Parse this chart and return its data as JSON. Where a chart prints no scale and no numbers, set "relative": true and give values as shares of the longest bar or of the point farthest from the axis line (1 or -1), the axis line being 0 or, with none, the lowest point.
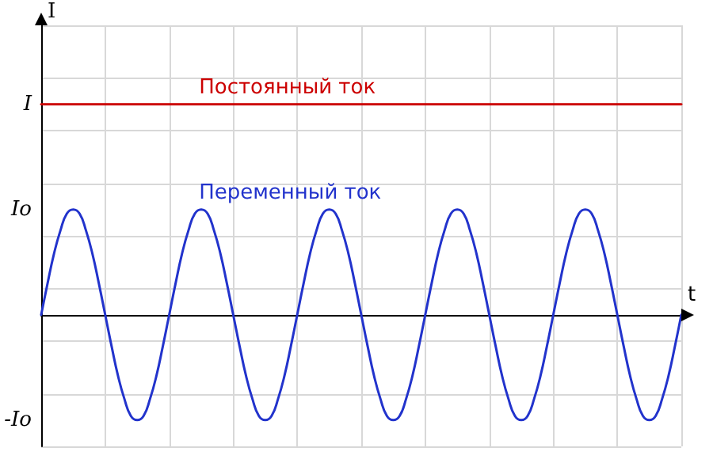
{
  "chart_data": {
    "type": "line",
    "xlabel": "t",
    "ylabel": "I",
    "categories": [
      null,
      null,
      null,
      null,
      null,
      null,
      null,
      null,
      null,
      null,
      null,
      null,
      null,
      null,
      null,
      null,
      null,
      null,
      null,
      null,
      null,
      null,
      null,
      null,
      null,
      null,
      null,
      null,
      null,
      null,
      null,
      null,
      null,
      null,
      null,
      null,
      null,
      null,
      null,
      null,
      null,
      null,
      null,
      null,
      null,
      null,
      null,
      null,
      null,
      null,
      null,
      null,
      null,
      null,
      null,
      null,
      null,
      null,
      null,
      null,
      null,
      null,
      null,
      null,
      null,
      null,
      null,
      null,
      null,
      null,
      null,
      null,
      null,
      null,
      null,
      null,
      null,
      null,
      null,
      null,
      null,
      null,
      null,
      null,
      null,
      null,
      null,
      null,
      null,
      null,
      null,
      null,
      null,
      null,
      null,
      null,
      null,
      null,
      null,
      null,
      null
    ],
    "series": [
      {
        "name": "Постоянный ток",
        "color": "#cc0000",
        "values": [
          1,
          1,
          1,
          1,
          1,
          1,
          1,
          1,
          1,
          1,
          1,
          1,
          1,
          1,
          1,
          1,
          1,
          1,
          1,
          1,
          1,
          1,
          1,
          1,
          1,
          1,
          1,
          1,
          1,
          1,
          1,
          1,
          1,
          1,
          1,
          1,
          1,
          1,
          1,
          1,
          1,
          1,
          1,
          1,
          1,
          1,
          1,
          1,
          1,
          1,
          1,
          1,
          1,
          1,
          1,
          1,
          1,
          1,
          1,
          1,
          1,
          1,
          1,
          1,
          1,
          1,
          1,
          1,
          1,
          1,
          1,
          1,
          1,
          1,
          1,
          1,
          1,
          1,
          1,
          1,
          1,
          1,
          1,
          1,
          1,
          1,
          1,
          1,
          1,
          1,
          1,
          1,
          1,
          1,
          1,
          1,
          1,
          1,
          1,
          1,
          1
        ]
      },
      {
        "name": "Переменный ток",
        "color": "#2233cc",
        "values": [
          0,
          0.15,
          0.29,
          0.4,
          0.48,
          0.5,
          0.48,
          0.4,
          0.29,
          0.15,
          0,
          -0.15,
          -0.29,
          -0.4,
          -0.48,
          -0.5,
          -0.48,
          -0.4,
          -0.29,
          -0.15,
          0,
          0.15,
          0.29,
          0.4,
          0.48,
          0.5,
          0.48,
          0.4,
          0.29,
          0.15,
          0,
          -0.15,
          -0.29,
          -0.4,
          -0.48,
          -0.5,
          -0.48,
          -0.4,
          -0.29,
          -0.15,
          0,
          0.15,
          0.29,
          0.4,
          0.48,
          0.5,
          0.48,
          0.4,
          0.29,
          0.15,
          0,
          -0.15,
          -0.29,
          -0.4,
          -0.48,
          -0.5,
          -0.48,
          -0.4,
          -0.29,
          -0.15,
          0,
          0.15,
          0.29,
          0.4,
          0.48,
          0.5,
          0.48,
          0.4,
          0.29,
          0.15,
          0,
          -0.15,
          -0.29,
          -0.4,
          -0.48,
          -0.5,
          -0.48,
          -0.4,
          -0.29,
          -0.15,
          0,
          0.15,
          0.29,
          0.4,
          0.48,
          0.5,
          0.48,
          0.4,
          0.29,
          0.15,
          0,
          -0.15,
          -0.29,
          -0.4,
          -0.48,
          -0.5,
          -0.48,
          -0.4,
          -0.29,
          -0.15,
          0
        ]
      }
    ],
    "relative": true,
    "annotations": [
      "I",
      "Io",
      "-Io"
    ],
    "grid": true,
    "legend": false,
    "marker": "none",
    "line_style": "solid"
  }
}
